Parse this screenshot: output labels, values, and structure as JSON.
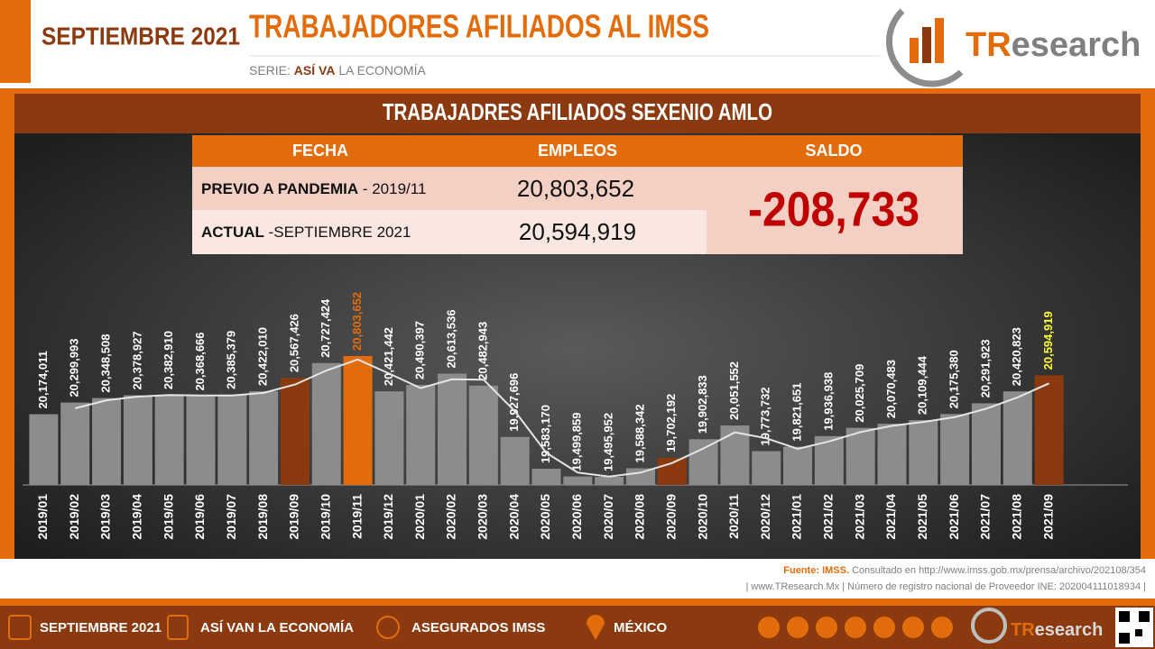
{
  "header": {
    "month": "SEPTIEMBRE 2021",
    "title": "TRABAJADORES AFILIADOS AL IMSS",
    "series_prefix": "SERIE:",
    "series_name": "ASÍ VA",
    "series_suffix": "LA ECONOMÍA",
    "logo_a": "TR",
    "logo_b": "esearch"
  },
  "panel_title": "TRABAJADRES AFILIADOS SEXENIO AMLO",
  "table": {
    "headers": [
      "FECHA",
      "EMPLEOS",
      "SALDO"
    ],
    "rows": [
      [
        "PREVIO A PANDEMIA",
        "- 2019/11",
        "20,803,652"
      ],
      [
        "ACTUAL",
        "-SEPTIEMBRE 2021",
        "20,594,919"
      ]
    ],
    "saldo": "-208,733"
  },
  "chart_data": {
    "type": "bar",
    "categories": [
      "2019/01",
      "2019/02",
      "2019/03",
      "2019/04",
      "2019/05",
      "2019/06",
      "2019/07",
      "2019/08",
      "2019/09",
      "2019/10",
      "2019/11",
      "2019/12",
      "2020/01",
      "2020/02",
      "2020/03",
      "2020/04",
      "2020/05",
      "2020/06",
      "2020/07",
      "2020/08",
      "2020/09",
      "2020/10",
      "2020/11",
      "2020/12",
      "2021/01",
      "2021/02",
      "2021/03",
      "2021/04",
      "2021/05",
      "2021/06",
      "2021/07",
      "2021/08",
      "2021/09"
    ],
    "ylim": [
      19408000,
      21828000
    ],
    "series": [
      {
        "values": [
          20174011,
          20299993,
          20348508,
          20378927,
          20382910,
          20368666,
          20385379,
          20422010,
          20567426,
          20727424,
          20803652,
          20421442,
          20490397,
          20613536,
          20482943,
          19927696,
          19583170,
          19499859,
          19495952,
          19588342,
          19702192,
          19902833,
          20051552,
          19773732,
          19821651,
          19936938,
          20025709,
          20070483,
          20109444,
          20175380,
          20291923,
          20420823,
          20594919
        ],
        "value_labels": [
          "20,174,011",
          "20,299,993",
          "20,348,508",
          "20,378,927",
          "20,382,910",
          "20,368,666",
          "20,385,379",
          "20,422,010",
          "20,567,426",
          "20,727,424",
          "20,803,652",
          "20,421,442",
          "20,490,397",
          "20,613,536",
          "20,482,943",
          "19,927,696",
          "19,583,170",
          "19,499,859",
          "19,495,952",
          "19,588,342",
          "19,702,192",
          "19,902,833",
          "20,051,552",
          "19,773,732",
          "19,821,651",
          "19,936,938",
          "20,025,709",
          "20,070,483",
          "20,109,444",
          "20,175,380",
          "20,291,923",
          "20,420,823",
          "20,594,919"
        ],
        "colors": [
          "#8c8c8c",
          "#8c8c8c",
          "#8c8c8c",
          "#8c8c8c",
          "#8c8c8c",
          "#8c8c8c",
          "#8c8c8c",
          "#8c8c8c",
          "#8b3a10",
          "#8c8c8c",
          "#e36c0a",
          "#8c8c8c",
          "#8c8c8c",
          "#8c8c8c",
          "#8c8c8c",
          "#8c8c8c",
          "#8c8c8c",
          "#8c8c8c",
          "#8c8c8c",
          "#8c8c8c",
          "#8b3a10",
          "#8c8c8c",
          "#8c8c8c",
          "#8c8c8c",
          "#8c8c8c",
          "#8c8c8c",
          "#8c8c8c",
          "#8c8c8c",
          "#8c8c8c",
          "#8c8c8c",
          "#8c8c8c",
          "#8c8c8c",
          "#8b3a10"
        ],
        "label_colors": [
          "#ffffff",
          "#ffffff",
          "#ffffff",
          "#ffffff",
          "#ffffff",
          "#ffffff",
          "#ffffff",
          "#ffffff",
          "#ffffff",
          "#ffffff",
          "#e36c0a",
          "#ffffff",
          "#ffffff",
          "#ffffff",
          "#ffffff",
          "#ffffff",
          "#ffffff",
          "#ffffff",
          "#ffffff",
          "#ffffff",
          "#ffffff",
          "#ffffff",
          "#ffffff",
          "#ffffff",
          "#ffffff",
          "#ffffff",
          "#ffffff",
          "#ffffff",
          "#ffffff",
          "#ffffff",
          "#ffffff",
          "#ffffff",
          "#ffff33"
        ]
      },
      {
        "type": "line",
        "color": "#e6e6e6",
        "values": [
          null,
          20237000,
          20324000,
          20364000,
          20381000,
          20376000,
          20377000,
          20404000,
          20495000,
          20647000,
          20766000,
          20613000,
          20456000,
          20552000,
          20548000,
          20205000,
          19755000,
          19542000,
          19498000,
          19542000,
          19645000,
          19803000,
          19977000,
          19913000,
          19798000,
          19879000,
          19981000,
          20048000,
          20090000,
          20142000,
          20234000,
          20356000,
          20508000
        ]
      }
    ]
  },
  "source": {
    "label": "Fuente:",
    "org": "IMSS.",
    "text": "Consultado en http://www.imss.gob.mx/prensa/archivo/202108/354",
    "line2": "| www.TResearch.Mx | Número de registro nacional de Proveedor INE: 202004111018934 |"
  },
  "footer": {
    "items": [
      "SEPTIEMBRE 2021",
      "ASÍ VAN LA ECONOMÍA",
      "ASEGURADOS IMSS",
      "MÉXICO"
    ]
  }
}
